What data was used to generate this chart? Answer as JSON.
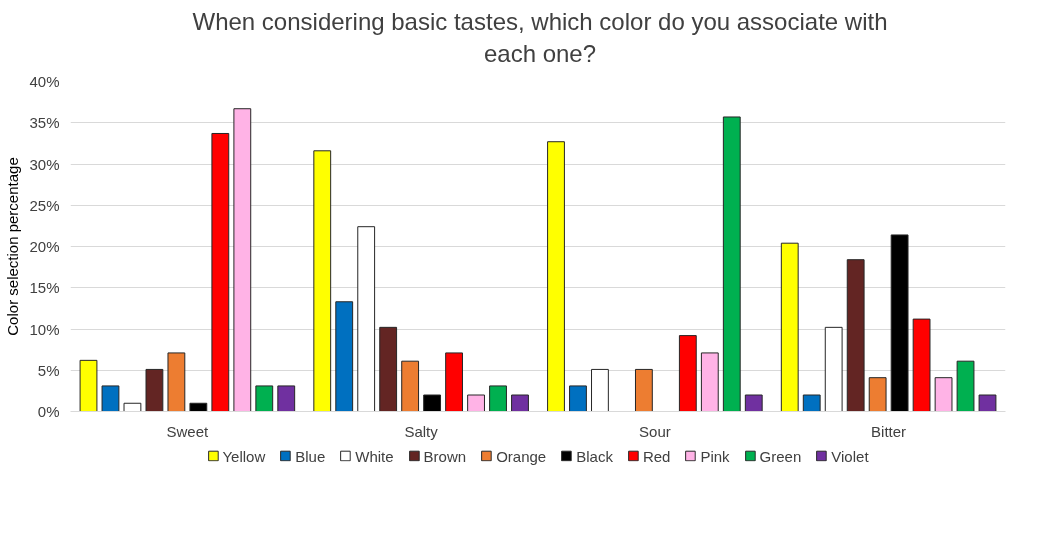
{
  "chart_data": {
    "type": "bar",
    "title": "When considering basic tastes, which color do you associate with each one?",
    "ylabel": "Color selection percentage",
    "categories": [
      "Sweet",
      "Salty",
      "Sour",
      "Bitter"
    ],
    "series": [
      {
        "name": "Yellow",
        "color": "#ffff00",
        "values": [
          6.2,
          31.6,
          32.7,
          20.4
        ]
      },
      {
        "name": "Blue",
        "color": "#0070c0",
        "values": [
          3.1,
          13.3,
          3.1,
          2.0
        ]
      },
      {
        "name": "White",
        "color": "#ffffff",
        "values": [
          1.0,
          22.4,
          5.1,
          10.2
        ]
      },
      {
        "name": "Brown",
        "color": "#632523",
        "values": [
          5.1,
          10.2,
          null,
          18.4
        ]
      },
      {
        "name": "Orange",
        "color": "#ed7d31",
        "values": [
          7.1,
          6.1,
          5.1,
          4.1
        ]
      },
      {
        "name": "Black",
        "color": "#000000",
        "values": [
          1.0,
          2.0,
          null,
          21.4
        ]
      },
      {
        "name": "Red",
        "color": "#ff0000",
        "values": [
          33.7,
          7.1,
          9.2,
          11.2
        ]
      },
      {
        "name": "Pink",
        "color": "#ffb3e6",
        "values": [
          36.7,
          2.0,
          7.1,
          4.1
        ]
      },
      {
        "name": "Green",
        "color": "#00b050",
        "values": [
          3.1,
          3.1,
          35.7,
          6.1
        ]
      },
      {
        "name": "Violet",
        "color": "#7030a0",
        "values": [
          3.1,
          2.0,
          2.0,
          2.0
        ]
      }
    ],
    "ylim": [
      0,
      40
    ],
    "yticks": [
      {
        "value": 0,
        "label": "0%"
      },
      {
        "value": 5,
        "label": "5%"
      },
      {
        "value": 10,
        "label": "10%"
      },
      {
        "value": 15,
        "label": "15%"
      },
      {
        "value": 20,
        "label": "20%"
      },
      {
        "value": 25,
        "label": "25%"
      },
      {
        "value": 30,
        "label": "30%"
      },
      {
        "value": 35,
        "label": "35%"
      },
      {
        "value": 40,
        "label": "40%"
      }
    ],
    "grid": "y",
    "legend": "bottom"
  }
}
